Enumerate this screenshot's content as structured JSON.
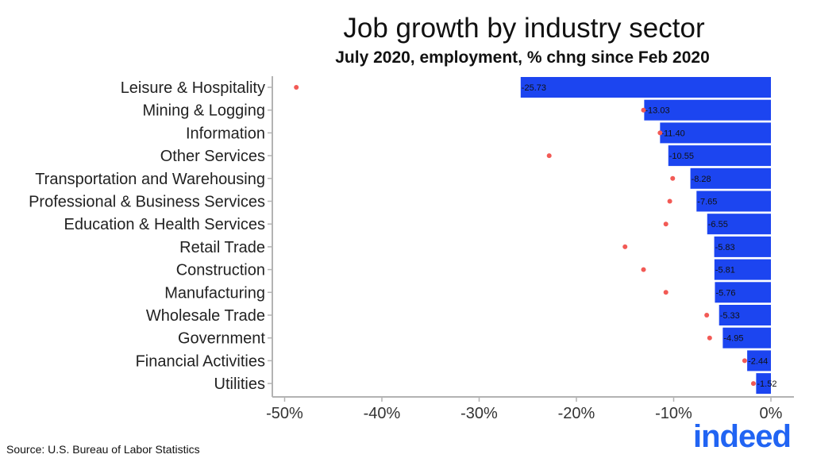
{
  "chart_data": {
    "type": "bar",
    "orientation": "horizontal",
    "title": "Job growth by industry sector",
    "subtitle": "July 2020, employment, % chng since Feb 2020",
    "categories": [
      "Leisure & Hospitality",
      "Mining & Logging",
      "Information",
      "Other Services",
      "Transportation and Warehousing",
      "Professional & Business Services",
      "Education & Health Services",
      "Retail Trade",
      "Construction",
      "Manufacturing",
      "Wholesale Trade",
      "Government",
      "Financial Activities",
      "Utilities"
    ],
    "bar_values": [
      -25.73,
      -13.03,
      -11.4,
      -10.55,
      -8.28,
      -7.65,
      -6.55,
      -5.83,
      -5.81,
      -5.76,
      -5.33,
      -4.95,
      -2.44,
      -1.52
    ],
    "bar_labels": [
      "-25.73",
      "-13.03",
      "-11.40",
      "-10.55",
      "-8.28",
      "-7.65",
      "-6.55",
      "-5.83",
      "-5.81",
      "-5.76",
      "-5.33",
      "-4.95",
      "-2.44",
      "-1.52"
    ],
    "dot_values": [
      -48.8,
      -13.1,
      -11.4,
      -22.8,
      -10.1,
      -10.4,
      -10.8,
      -15.0,
      -13.1,
      -10.8,
      -6.6,
      -6.3,
      -2.7,
      -1.8
    ],
    "xlim": [
      -50,
      0
    ],
    "xticks": [
      -50,
      -40,
      -30,
      -20,
      -10,
      0
    ],
    "xtick_labels": [
      "-50%",
      "-40%",
      "-30%",
      "-20%",
      "-10%",
      "0%"
    ],
    "grid": false,
    "colors": {
      "bar": "#1c45f0",
      "dot": "#f25a55",
      "axis": "#b3b3b3"
    }
  },
  "source": "Source: U.S. Bureau of Labor Statistics",
  "logo_text": "indeed"
}
